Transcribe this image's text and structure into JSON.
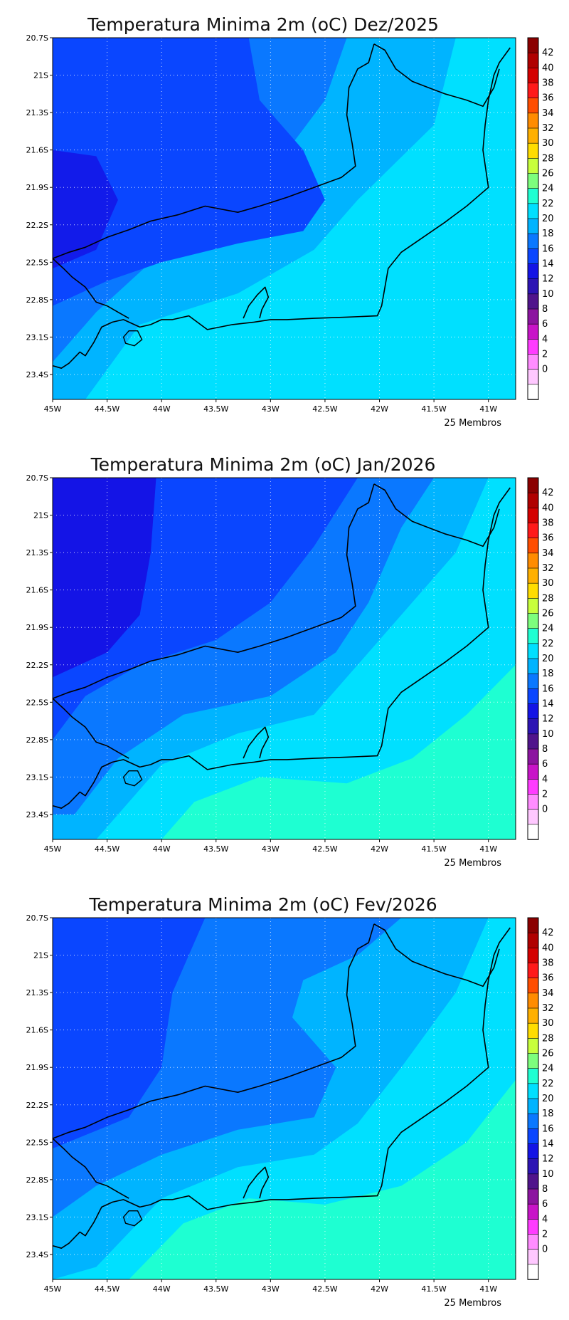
{
  "maps": [
    {
      "title": "Temperatura Minima 2m (oC) Dez/2025",
      "members": "25 Membros",
      "style": "dez"
    },
    {
      "title": "Temperatura Minima 2m (oC) Jan/2026",
      "members": "25 Membros",
      "style": "jan"
    },
    {
      "title": "Temperatura Minima 2m (oC) Fev/2026",
      "members": "25 Membros",
      "style": "fev"
    }
  ],
  "lat_labels": [
    "20.7S",
    "21S",
    "21.3S",
    "21.6S",
    "21.9S",
    "22.2S",
    "22.5S",
    "22.8S",
    "23.1S",
    "23.4S"
  ],
  "lon_labels": [
    "45W",
    "44.5W",
    "44W",
    "43.5W",
    "43W",
    "42.5W",
    "42W",
    "41.5W",
    "41W"
  ],
  "colorbar": {
    "labels": [
      "42",
      "40",
      "38",
      "36",
      "34",
      "32",
      "30",
      "28",
      "26",
      "24",
      "22",
      "20",
      "18",
      "16",
      "14",
      "12",
      "10",
      "8",
      "6",
      "4",
      "2",
      "0"
    ],
    "colors": [
      "#8b0000",
      "#b00000",
      "#d40000",
      "#ff1a1a",
      "#ff4d00",
      "#ff8c00",
      "#ffb000",
      "#ffdd00",
      "#c8ff3c",
      "#7dff7d",
      "#1effd2",
      "#00e0ff",
      "#00b4ff",
      "#0a78ff",
      "#0a46ff",
      "#1414e6",
      "#2d14b4",
      "#50148c",
      "#8c14a0",
      "#c814c8",
      "#ff3cff",
      "#ff8cff",
      "#ffc8ff",
      "#ffffff"
    ]
  }
}
